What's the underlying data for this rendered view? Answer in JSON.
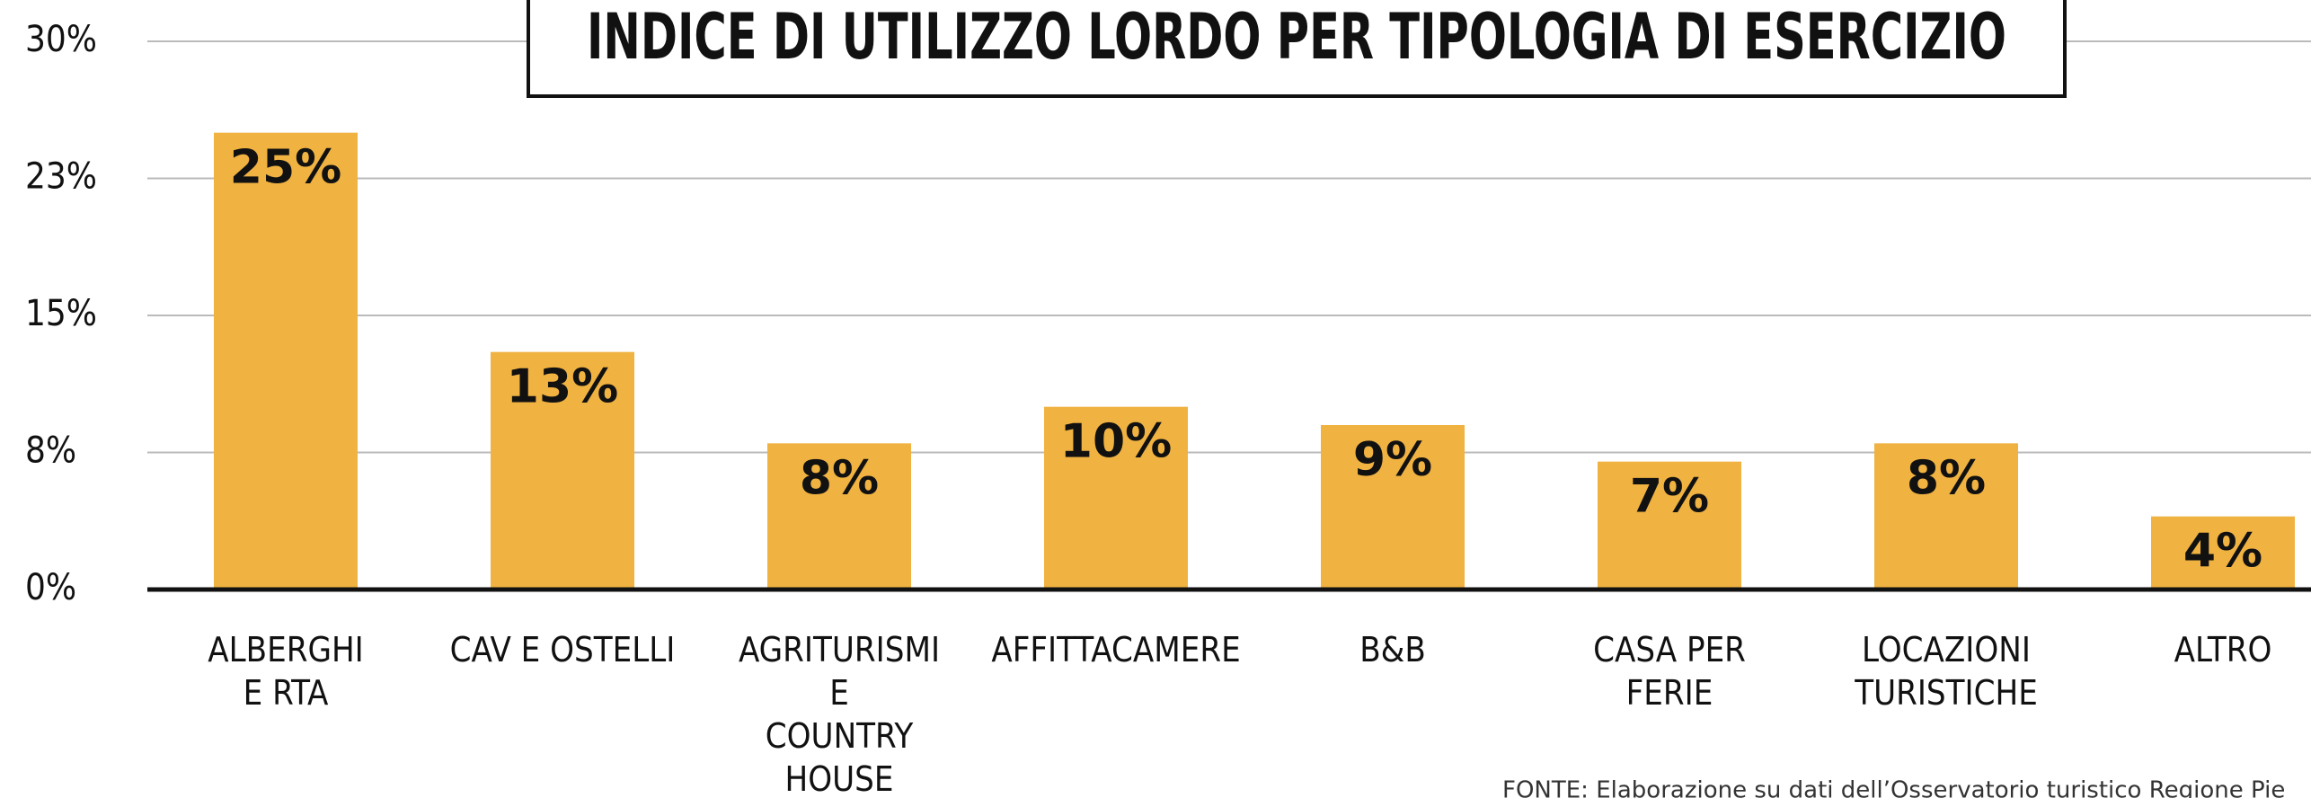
{
  "chart_data": {
    "type": "bar",
    "title": "INDICE DI UTILIZZO LORDO PER TIPOLOGIA DI ESERCIZIO",
    "categories": [
      "ALBERGHI\nE RTA",
      "CAV E OSTELLI",
      "AGRITURISMI\nE\nCOUNTRY\nHOUSE",
      "AFFITTACAMERE",
      "B&B",
      "CASA PER\nFERIE",
      "LOCAZIONI\nTURISTICHE",
      "ALTRO"
    ],
    "values": [
      25,
      13,
      8,
      10,
      9,
      7,
      8,
      4
    ],
    "value_labels": [
      "25%",
      "13%",
      "8%",
      "10%",
      "9%",
      "7%",
      "8%",
      "4%"
    ],
    "color": "#f0b241",
    "ylim": [
      0,
      30
    ],
    "yticks": [
      {
        "value": 0,
        "label": "0%"
      },
      {
        "value": 7.5,
        "label": "8%"
      },
      {
        "value": 15,
        "label": "15%"
      },
      {
        "value": 22.5,
        "label": "23%"
      },
      {
        "value": 30,
        "label": "30%"
      }
    ],
    "grid": true,
    "source": "FONTE: Elaborazione su dati dell’Osservatorio turistico Regione Pie"
  }
}
